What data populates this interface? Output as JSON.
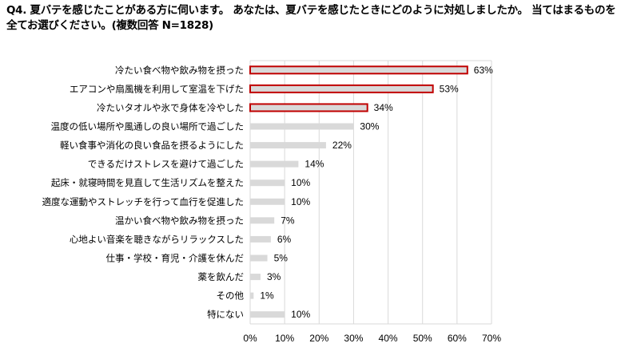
{
  "chart_data": {
    "type": "bar",
    "orientation": "horizontal",
    "title": "Q4. 夏バテを感じたことがある方に伺います。 あなたは、夏バテを感じたときにどのように対処しましたか。 当てはまるものを全てお選びください。(複数回答 N=1828)",
    "xlabel": "",
    "ylabel": "",
    "xlim": [
      0,
      70
    ],
    "x_ticks": [
      "0%",
      "10%",
      "20%",
      "30%",
      "40%",
      "50%",
      "60%",
      "70%"
    ],
    "grid": true,
    "categories": [
      "冷たい食べ物や飲み物を摂った",
      "エアコンや扇風機を利用して室温を下げた",
      "冷たいタオルや氷で身体を冷やした",
      "温度の低い場所や風通しの良い場所で過ごした",
      "軽い食事や消化の良い食品を摂るようにした",
      "できるだけストレスを避けて過ごした",
      "起床・就寝時間を見直して生活リズムを整えた",
      "適度な運動やストレッチを行って血行を促進した",
      "温かい食べ物や飲み物を摂った",
      "心地よい音楽を聴きながらリラックスした",
      "仕事・学校・育児・介護を休んだ",
      "薬を飲んだ",
      "その他",
      "特にない"
    ],
    "values": [
      63,
      53,
      34,
      30,
      22,
      14,
      10,
      10,
      7,
      6,
      5,
      3,
      1,
      10
    ],
    "value_labels": [
      "63%",
      "53%",
      "34%",
      "30%",
      "22%",
      "14%",
      "10%",
      "10%",
      "7%",
      "6%",
      "5%",
      "3%",
      "1%",
      "10%"
    ],
    "highlighted": [
      true,
      true,
      true,
      false,
      false,
      false,
      false,
      false,
      false,
      false,
      false,
      false,
      false,
      false
    ],
    "bar_color": "#d9d9d9",
    "highlight_border_color": "#c00000",
    "grid_color": "#d9d9d9"
  }
}
